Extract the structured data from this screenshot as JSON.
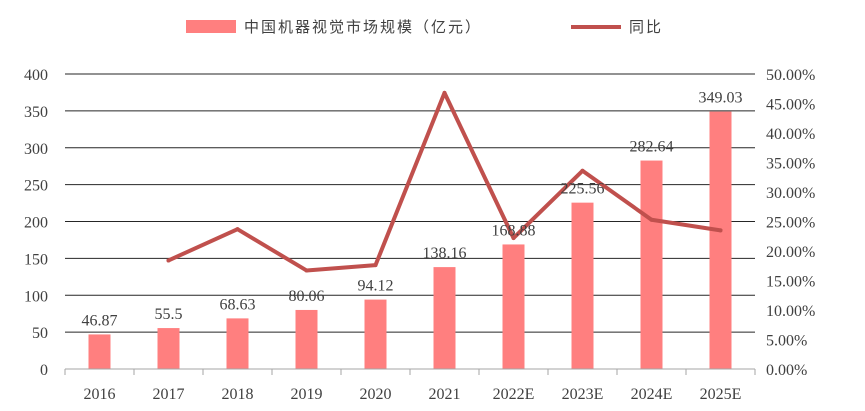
{
  "chart_data": {
    "type": "bar+line",
    "categories": [
      "2016",
      "2017",
      "2018",
      "2019",
      "2020",
      "2021",
      "2022E",
      "2023E",
      "2024E",
      "2025E"
    ],
    "series": [
      {
        "name": "中国机器视觉市场规模（亿元）",
        "type": "bar",
        "axis": "left",
        "values": [
          46.87,
          55.5,
          68.63,
          80.06,
          94.12,
          138.16,
          168.88,
          225.56,
          282.64,
          349.03
        ],
        "labels": [
          "46.87",
          "55.5",
          "68.63",
          "80.06",
          "94.12",
          "138.16",
          "168.88",
          "225.56",
          "282.64",
          "349.03"
        ],
        "color": "#FF7F7F"
      },
      {
        "name": "同比",
        "type": "line",
        "axis": "right",
        "values": [
          null,
          18.4,
          23.7,
          16.7,
          17.6,
          46.8,
          22.2,
          33.6,
          25.3,
          23.5
        ],
        "color": "#C0504D"
      }
    ],
    "y_left": {
      "min": 0,
      "max": 400,
      "step": 50,
      "ticks": [
        "0",
        "50",
        "100",
        "150",
        "200",
        "250",
        "300",
        "350",
        "400"
      ]
    },
    "y_right": {
      "min": 0,
      "max": 50,
      "step": 5,
      "ticks": [
        "0.00%",
        "5.00%",
        "10.00%",
        "15.00%",
        "20.00%",
        "25.00%",
        "30.00%",
        "35.00%",
        "40.00%",
        "45.00%",
        "50.00%"
      ]
    },
    "legend": {
      "position": "top-center",
      "items": [
        "中国机器视觉市场规模（亿元）",
        "同比"
      ]
    },
    "grid": "horizontal",
    "title": "",
    "xlabel": "",
    "ylabel": ""
  }
}
